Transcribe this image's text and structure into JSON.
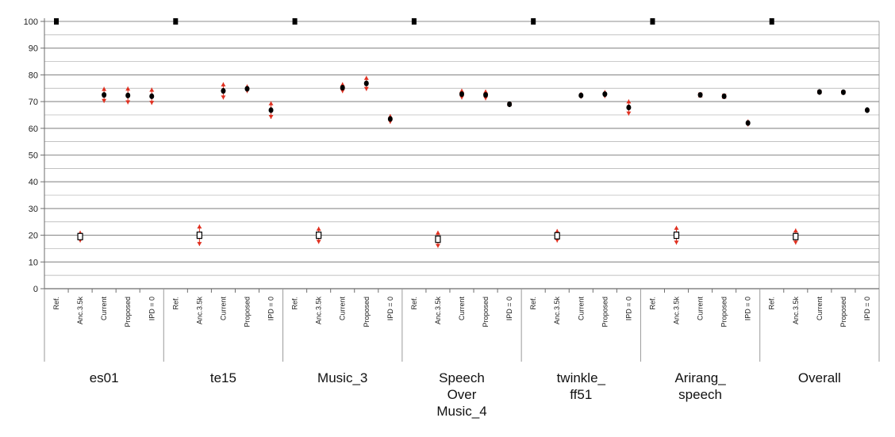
{
  "chart_data": {
    "type": "scatter",
    "ylim": [
      0,
      100
    ],
    "yticks": [
      "0",
      "10",
      "20",
      "30",
      "40",
      "50",
      "60",
      "70",
      "80",
      "90",
      "100"
    ],
    "conditions": [
      "Ref.",
      "Anc.3.5k",
      "Current",
      "Proposed",
      "IPD = 0"
    ],
    "groups": [
      {
        "label": "es01",
        "lines": [
          "es01"
        ]
      },
      {
        "label": "te15",
        "lines": [
          "te15"
        ]
      },
      {
        "label": "Music_3",
        "lines": [
          "Music_3"
        ]
      },
      {
        "label": "Speech Over Music_4",
        "lines": [
          "Speech",
          "Over",
          "Music_4"
        ]
      },
      {
        "label": "twinkle_ ff51",
        "lines": [
          "twinkle_",
          "ff51"
        ]
      },
      {
        "label": "Arirang_ speech",
        "lines": [
          "Arirang_",
          "speech"
        ]
      },
      {
        "label": "Overall",
        "lines": [
          "Overall"
        ]
      }
    ],
    "series": [
      {
        "group": "es01",
        "means": [
          100,
          19.5,
          72.5,
          72.3,
          72.0
        ],
        "ci": [
          0.3,
          2.2,
          3.0,
          3.3,
          3.2
        ]
      },
      {
        "group": "te15",
        "means": [
          100,
          20.0,
          74.0,
          74.8,
          66.8
        ],
        "ci": [
          0.3,
          4.0,
          3.2,
          1.6,
          3.3
        ]
      },
      {
        "group": "Music_3",
        "means": [
          100,
          20.0,
          75.2,
          76.8,
          63.5
        ],
        "ci": [
          0.3,
          3.2,
          2.0,
          2.8,
          1.8
        ]
      },
      {
        "group": "Speech Over Music_4",
        "means": [
          100,
          18.5,
          72.8,
          72.5,
          69.0
        ],
        "ci": [
          0.3,
          3.2,
          2.0,
          2.0,
          0.8
        ]
      },
      {
        "group": "twinkle_ ff51",
        "means": [
          100,
          19.8,
          72.3,
          72.8,
          67.8
        ],
        "ci": [
          0.3,
          2.5,
          1.2,
          1.5,
          3.0
        ]
      },
      {
        "group": "Arirang_ speech",
        "means": [
          100,
          20.0,
          72.5,
          72.0,
          62.0
        ],
        "ci": [
          0.3,
          3.5,
          0.6,
          0.6,
          1.3
        ]
      },
      {
        "group": "Overall",
        "means": [
          100,
          19.5,
          73.6,
          73.5,
          66.8
        ],
        "ci": [
          0.3,
          3.0,
          0.8,
          0.8,
          1.0
        ]
      }
    ],
    "grid": true,
    "colors": {
      "marker": "#000000",
      "ci_arrow": "#e03020",
      "grid": "#8c8c8c",
      "axis": "#6e6e6e"
    }
  }
}
